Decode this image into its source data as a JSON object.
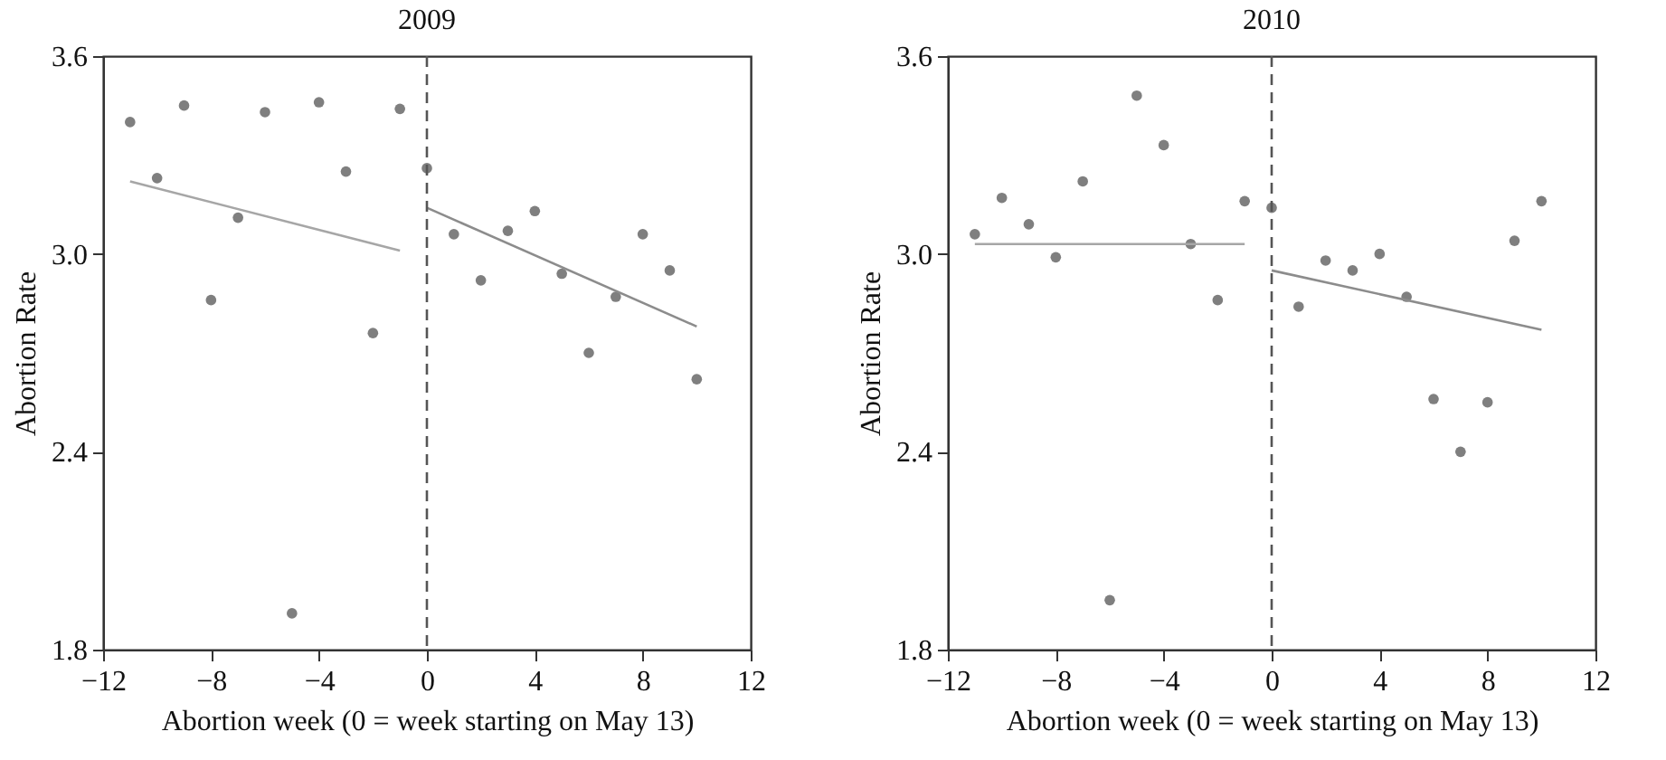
{
  "chart_data": [
    {
      "type": "scatter",
      "title": "2009",
      "xlabel": "Abortion week (0 = week starting on May 13)",
      "ylabel": "Abortion Rate",
      "x": [
        -11,
        -10,
        -9,
        -8,
        -7,
        -6,
        -5,
        -4,
        -3,
        -2,
        -1,
        0,
        1,
        2,
        3,
        4,
        5,
        6,
        7,
        8,
        9,
        10
      ],
      "series": [
        {
          "color": "#7f7f7f",
          "marker": "circle",
          "values": [
            3.4,
            3.23,
            3.45,
            2.86,
            3.11,
            3.43,
            1.91,
            3.46,
            3.25,
            2.76,
            3.44,
            3.26,
            3.06,
            2.92,
            3.07,
            3.13,
            2.94,
            2.7,
            2.87,
            3.06,
            2.95,
            2.62
          ]
        },
        {
          "type": "line",
          "color": "#a6a6a6",
          "x": [
            -11,
            -1
          ],
          "values": [
            3.22,
            3.01
          ]
        },
        {
          "type": "line",
          "color": "#8c8c8c",
          "x": [
            0,
            10
          ],
          "values": [
            3.14,
            2.78
          ]
        }
      ],
      "xlim": [
        -12,
        12
      ],
      "xticks": [
        -12,
        -8,
        -4,
        0,
        4,
        8,
        12
      ],
      "ylim": [
        1.8,
        3.6
      ],
      "yticks": [
        1.8,
        2.4,
        {
          "value": 3,
          "label": "3.0"
        },
        3.6
      ],
      "ref_lines": [
        {
          "axis": "x",
          "value": 0,
          "color": "#555555",
          "line_style": "dashed"
        }
      ],
      "grid": false
    },
    {
      "type": "scatter",
      "title": "2010",
      "xlabel": "Abortion week (0 = week starting on May 13)",
      "ylabel": "Abortion Rate",
      "x": [
        -11,
        -10,
        -9,
        -8,
        -7,
        -6,
        -5,
        -4,
        -3,
        -2,
        -1,
        0,
        1,
        2,
        3,
        4,
        5,
        6,
        7,
        8,
        9,
        10
      ],
      "series": [
        {
          "color": "#7f7f7f",
          "marker": "circle",
          "values": [
            3.06,
            3.17,
            3.09,
            2.99,
            3.22,
            1.95,
            3.48,
            3.33,
            3.03,
            2.86,
            3.16,
            3.14,
            2.84,
            2.98,
            2.95,
            3.0,
            2.87,
            2.56,
            2.4,
            2.55,
            3.04,
            3.16
          ]
        },
        {
          "type": "line",
          "color": "#a6a6a6",
          "x": [
            -11,
            -1
          ],
          "values": [
            3.03,
            3.03
          ]
        },
        {
          "type": "line",
          "color": "#8c8c8c",
          "x": [
            0,
            10
          ],
          "values": [
            2.95,
            2.77
          ]
        }
      ],
      "xlim": [
        -12,
        12
      ],
      "xticks": [
        -12,
        -8,
        -4,
        0,
        4,
        8,
        12
      ],
      "ylim": [
        1.8,
        3.6
      ],
      "yticks": [
        1.8,
        2.4,
        {
          "value": 3,
          "label": "3.0"
        },
        3.6
      ],
      "ref_lines": [
        {
          "axis": "x",
          "value": 0,
          "color": "#555555",
          "line_style": "dashed"
        }
      ],
      "grid": false
    }
  ]
}
